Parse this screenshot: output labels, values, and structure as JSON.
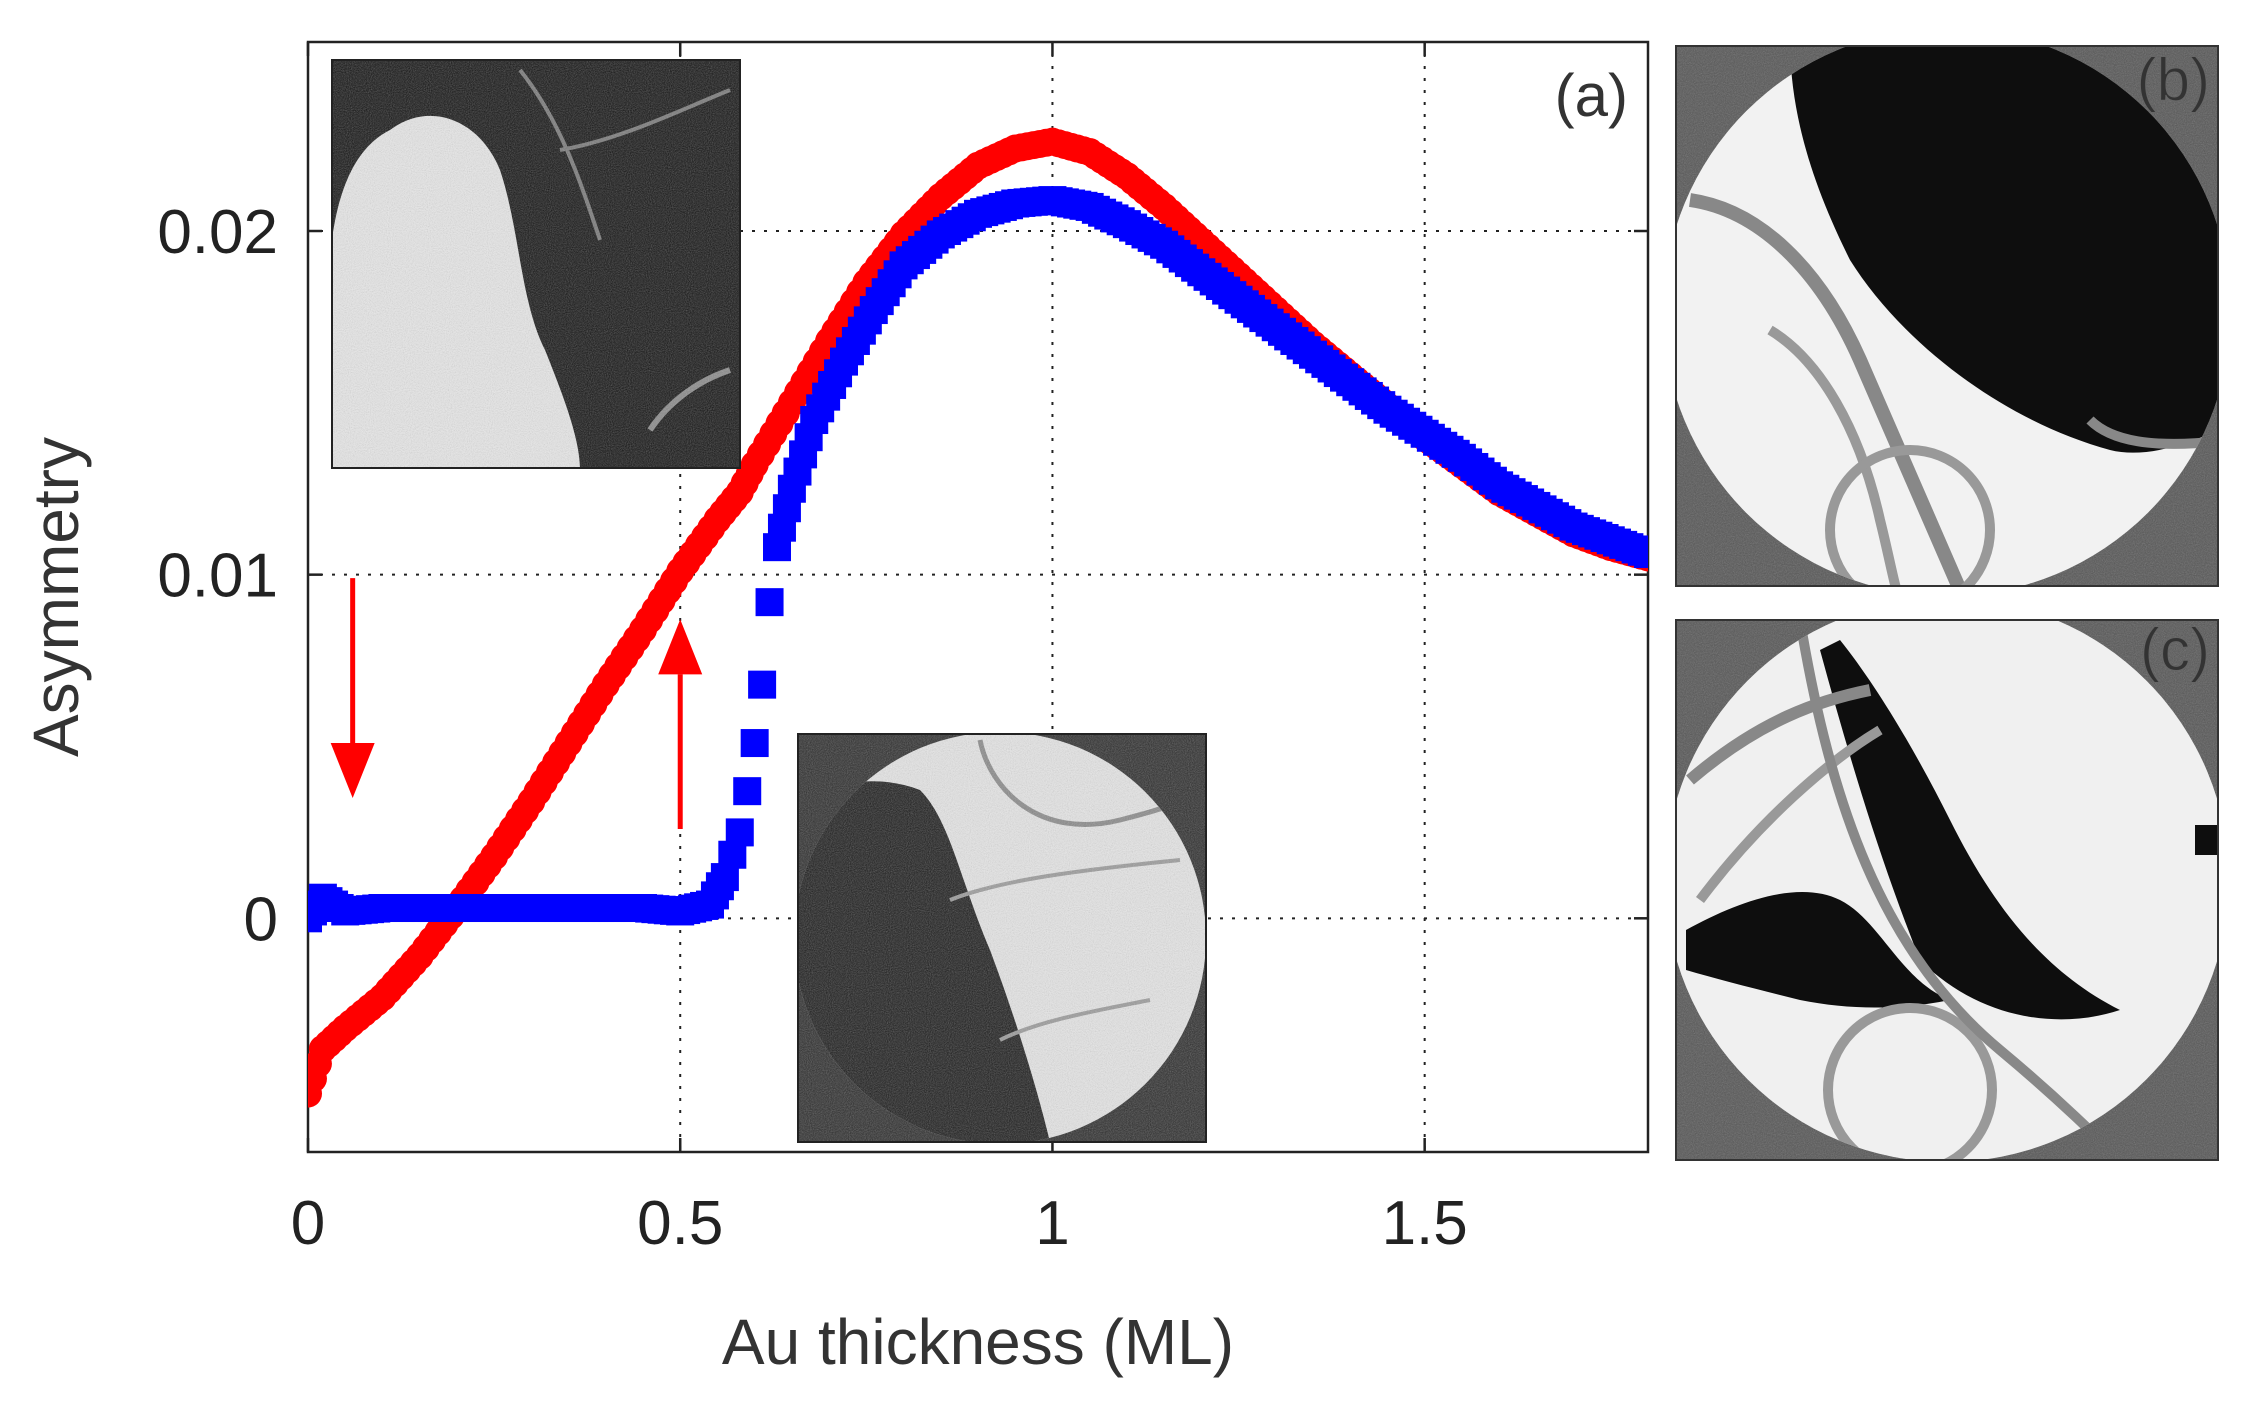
{
  "chart_data": {
    "type": "scatter",
    "title": "",
    "panel_label": "(a)",
    "xlabel": "Au thickness (ML)",
    "ylabel": "Asymmetry",
    "xlim": [
      0,
      1.8
    ],
    "ylim": [
      -0.0068,
      0.0255
    ],
    "xticks": [
      0,
      0.5,
      1,
      1.5
    ],
    "xtick_labels": [
      "0",
      "0.5",
      "1",
      "1.5"
    ],
    "yticks": [
      0,
      0.01,
      0.02
    ],
    "ytick_labels": [
      "0",
      "0.01",
      "0.02"
    ],
    "grid": true,
    "series": [
      {
        "name": "red",
        "color": "#ff0000",
        "marker": "circle",
        "x": [
          0.0,
          0.02,
          0.05,
          0.1,
          0.15,
          0.2,
          0.25,
          0.3,
          0.35,
          0.4,
          0.45,
          0.5,
          0.55,
          0.58,
          0.6,
          0.65,
          0.7,
          0.75,
          0.8,
          0.85,
          0.9,
          0.95,
          1.0,
          1.05,
          1.1,
          1.15,
          1.2,
          1.25,
          1.3,
          1.35,
          1.4,
          1.45,
          1.5,
          1.55,
          1.6,
          1.65,
          1.7,
          1.75,
          1.8
        ],
        "y": [
          -0.0051,
          -0.0038,
          -0.0032,
          -0.0023,
          -0.0011,
          0.0003,
          0.0018,
          0.0034,
          0.0051,
          0.0068,
          0.0084,
          0.0101,
          0.0116,
          0.0124,
          0.0132,
          0.015,
          0.0168,
          0.0185,
          0.0199,
          0.021,
          0.0219,
          0.0224,
          0.0226,
          0.0223,
          0.0216,
          0.0207,
          0.0197,
          0.0187,
          0.0177,
          0.0167,
          0.0158,
          0.0149,
          0.014,
          0.0132,
          0.0124,
          0.0118,
          0.0112,
          0.0108,
          0.0105
        ]
      },
      {
        "name": "blue",
        "color": "#0000ff",
        "marker": "square",
        "x": [
          0.0,
          0.02,
          0.05,
          0.1,
          0.15,
          0.2,
          0.25,
          0.3,
          0.35,
          0.4,
          0.45,
          0.5,
          0.54,
          0.56,
          0.58,
          0.59,
          0.6,
          0.61,
          0.62,
          0.63,
          0.65,
          0.68,
          0.72,
          0.76,
          0.8,
          0.85,
          0.9,
          0.95,
          1.0,
          1.05,
          1.1,
          1.15,
          1.2,
          1.25,
          1.3,
          1.35,
          1.4,
          1.45,
          1.5,
          1.55,
          1.6,
          1.65,
          1.7,
          1.75,
          1.8
        ],
        "y": [
          0.0,
          0.0006,
          0.0002,
          0.0003,
          0.0003,
          0.0003,
          0.0003,
          0.0003,
          0.0003,
          0.0003,
          0.0003,
          0.0002,
          0.0004,
          0.0012,
          0.0025,
          0.0037,
          0.0051,
          0.0068,
          0.0092,
          0.0108,
          0.0125,
          0.0145,
          0.0162,
          0.0177,
          0.019,
          0.0199,
          0.0205,
          0.0208,
          0.0209,
          0.0207,
          0.0202,
          0.0196,
          0.0188,
          0.018,
          0.0172,
          0.0164,
          0.0156,
          0.0148,
          0.0141,
          0.0134,
          0.0126,
          0.012,
          0.0114,
          0.011,
          0.0106
        ]
      }
    ],
    "annotations": [
      {
        "type": "arrow",
        "direction": "down",
        "color": "#ff0000",
        "x": 0.06,
        "y_from": 0.0099,
        "y_to": 0.0035
      },
      {
        "type": "arrow",
        "direction": "up",
        "color": "#ff0000",
        "x": 0.5,
        "y_from": 0.0026,
        "y_to": 0.0087
      }
    ],
    "insets": [
      {
        "name": "top-left inset image",
        "placement": "top-left inside plot"
      },
      {
        "name": "bottom-center inset image",
        "placement": "bottom-center inside plot"
      }
    ]
  },
  "side_panels": [
    {
      "label": "(b)"
    },
    {
      "label": "(c)"
    }
  ]
}
